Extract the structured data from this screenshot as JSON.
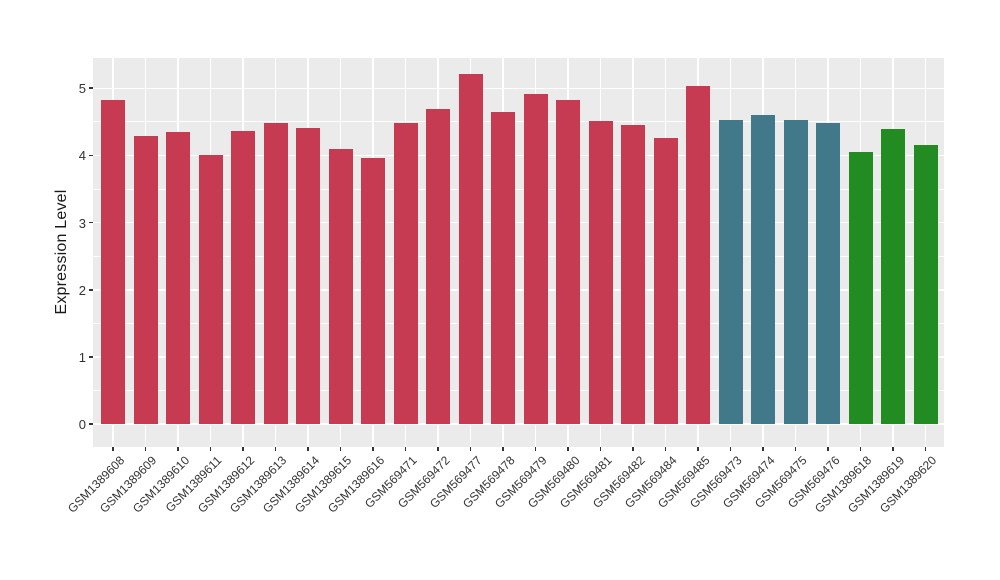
{
  "figure": {
    "ylabel": "Expression Level"
  },
  "palette": {
    "red": "#C63A52",
    "teal": "#42798A",
    "green": "#228C22",
    "panel_bg": "#EBEBEB",
    "grid": "#FFFFFF",
    "tick": "#333333"
  },
  "chart_data": {
    "type": "bar",
    "title": "",
    "xlabel": "",
    "ylabel": "Expression Level",
    "ylim": [
      0,
      5.45
    ],
    "yticks": [
      0,
      1,
      2,
      3,
      4,
      5
    ],
    "yticks_minor": [
      0.5,
      1.5,
      2.5,
      3.5,
      4.5
    ],
    "grid": "white major+minor horizontal lines and white vertical lines at each bar center on gray panel (ggplot style)",
    "legend_position": "none",
    "categories": [
      "GSM1389608",
      "GSM1389609",
      "GSM1389610",
      "GSM1389611",
      "GSM1389612",
      "GSM1389613",
      "GSM1389614",
      "GSM1389615",
      "GSM1389616",
      "GSM569471",
      "GSM569472",
      "GSM569477",
      "GSM569478",
      "GSM569479",
      "GSM569480",
      "GSM569481",
      "GSM569482",
      "GSM569484",
      "GSM569485",
      "GSM569473",
      "GSM569474",
      "GSM569475",
      "GSM569476",
      "GSM1389618",
      "GSM1389619",
      "GSM1389620"
    ],
    "values": [
      4.82,
      4.29,
      4.35,
      4.01,
      4.36,
      4.49,
      4.41,
      4.1,
      3.96,
      4.48,
      4.69,
      5.21,
      4.64,
      4.92,
      4.82,
      4.51,
      4.45,
      4.26,
      5.04,
      4.53,
      4.6,
      4.53,
      4.48,
      4.05,
      4.4,
      4.16
    ],
    "color_groups": [
      "red",
      "red",
      "red",
      "red",
      "red",
      "red",
      "red",
      "red",
      "red",
      "red",
      "red",
      "red",
      "red",
      "red",
      "red",
      "red",
      "red",
      "red",
      "red",
      "teal",
      "teal",
      "teal",
      "teal",
      "green",
      "green",
      "green"
    ]
  }
}
